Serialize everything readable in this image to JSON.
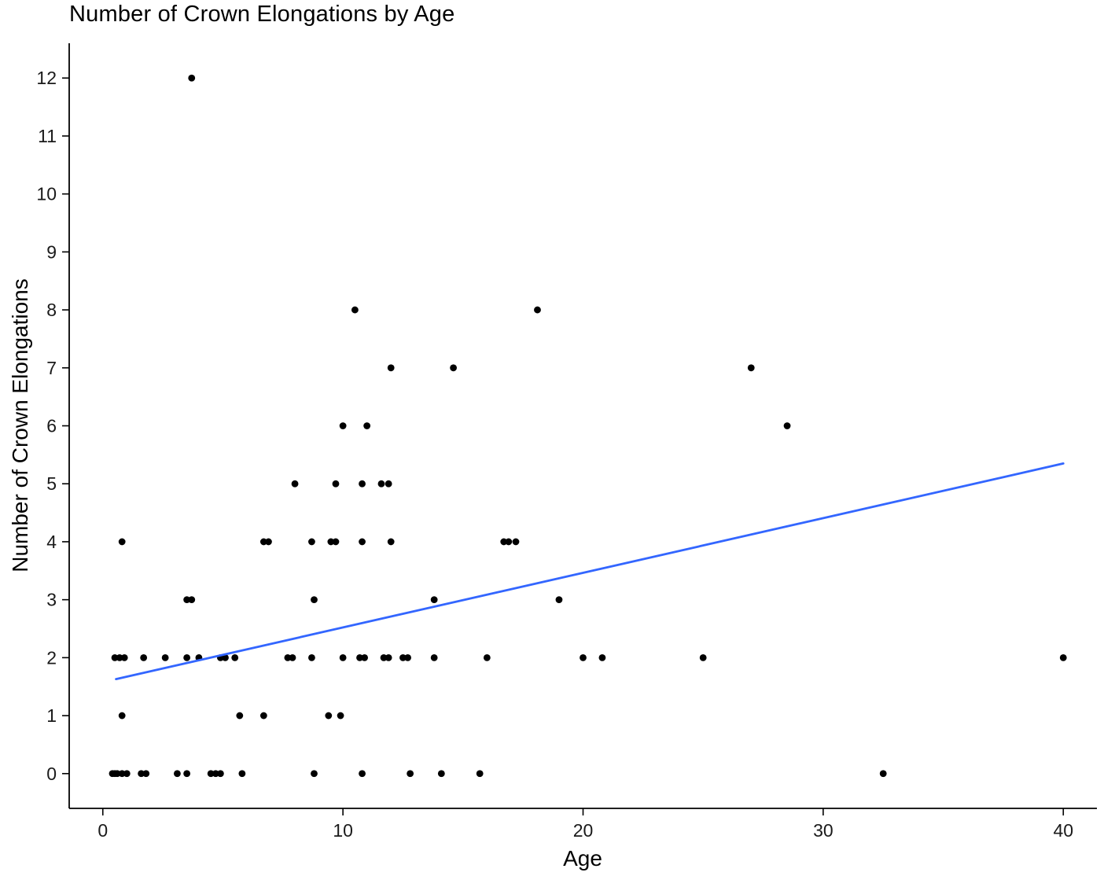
{
  "chart_data": {
    "type": "scatter",
    "title": "Number of Crown Elongations by Age",
    "xlabel": "Age",
    "ylabel": "Number of Crown Elongations",
    "xlim": [
      -1.4,
      41.4
    ],
    "ylim": [
      -0.6,
      12.6
    ],
    "x_ticks": [
      0,
      10,
      20,
      30,
      40
    ],
    "y_ticks": [
      0,
      1,
      2,
      3,
      4,
      5,
      6,
      7,
      8,
      9,
      10,
      11,
      12
    ],
    "grid": false,
    "legend": "none",
    "point_color": "#000000",
    "line_color": "#3366FF",
    "axis_color": "#000000",
    "text_color": "#1a1a1a",
    "trend_line": {
      "x": [
        0.55,
        40
      ],
      "y": [
        1.63,
        5.35
      ]
    },
    "points": [
      [
        3.7,
        12
      ],
      [
        10.5,
        8
      ],
      [
        18.1,
        8
      ],
      [
        12.0,
        7
      ],
      [
        14.6,
        7
      ],
      [
        27.0,
        7
      ],
      [
        10.0,
        6
      ],
      [
        11.0,
        6
      ],
      [
        28.5,
        6
      ],
      [
        8.0,
        5
      ],
      [
        9.7,
        5
      ],
      [
        10.8,
        5
      ],
      [
        11.6,
        5
      ],
      [
        11.9,
        5
      ],
      [
        0.8,
        4
      ],
      [
        6.7,
        4
      ],
      [
        6.9,
        4
      ],
      [
        8.7,
        4
      ],
      [
        9.5,
        4
      ],
      [
        9.7,
        4
      ],
      [
        10.8,
        4
      ],
      [
        12.0,
        4
      ],
      [
        16.7,
        4
      ],
      [
        16.9,
        4
      ],
      [
        17.2,
        4
      ],
      [
        3.5,
        3
      ],
      [
        3.7,
        3
      ],
      [
        8.8,
        3
      ],
      [
        13.8,
        3
      ],
      [
        19.0,
        3
      ],
      [
        0.5,
        2
      ],
      [
        0.7,
        2
      ],
      [
        0.9,
        2
      ],
      [
        1.7,
        2
      ],
      [
        2.6,
        2
      ],
      [
        3.5,
        2
      ],
      [
        4.0,
        2
      ],
      [
        4.9,
        2
      ],
      [
        5.1,
        2
      ],
      [
        5.5,
        2
      ],
      [
        7.7,
        2
      ],
      [
        7.9,
        2
      ],
      [
        8.7,
        2
      ],
      [
        10.0,
        2
      ],
      [
        10.7,
        2
      ],
      [
        10.9,
        2
      ],
      [
        11.7,
        2
      ],
      [
        11.9,
        2
      ],
      [
        12.5,
        2
      ],
      [
        12.7,
        2
      ],
      [
        13.8,
        2
      ],
      [
        16.0,
        2
      ],
      [
        20.0,
        2
      ],
      [
        20.8,
        2
      ],
      [
        25.0,
        2
      ],
      [
        40.0,
        2
      ],
      [
        0.8,
        1
      ],
      [
        5.7,
        1
      ],
      [
        6.7,
        1
      ],
      [
        9.4,
        1
      ],
      [
        9.9,
        1
      ],
      [
        0.4,
        0
      ],
      [
        0.5,
        0
      ],
      [
        0.6,
        0
      ],
      [
        0.8,
        0
      ],
      [
        1.0,
        0
      ],
      [
        1.6,
        0
      ],
      [
        1.8,
        0
      ],
      [
        3.1,
        0
      ],
      [
        3.5,
        0
      ],
      [
        4.5,
        0
      ],
      [
        4.7,
        0
      ],
      [
        4.9,
        0
      ],
      [
        5.8,
        0
      ],
      [
        8.8,
        0
      ],
      [
        10.8,
        0
      ],
      [
        12.8,
        0
      ],
      [
        14.1,
        0
      ],
      [
        15.7,
        0
      ],
      [
        32.5,
        0
      ]
    ]
  }
}
